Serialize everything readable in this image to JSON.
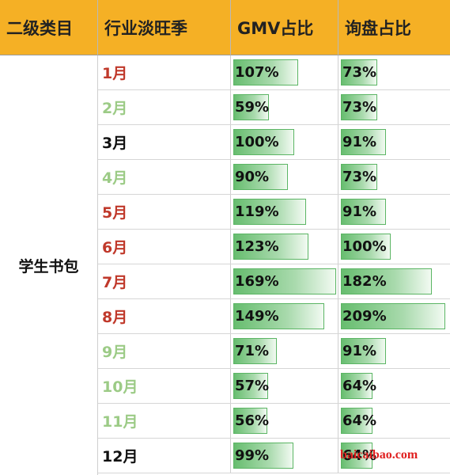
{
  "header": {
    "col1": "二级类目",
    "col2": "行业淡旺季",
    "col3": "GMV占比",
    "col4": "询盘占比"
  },
  "category": "学生书包",
  "colors": {
    "header_bg": "#f5b025",
    "peak": "#c0392b",
    "off": "#9ccb86",
    "neutral": "#111111",
    "bar": "#67bd6f"
  },
  "rows": [
    {
      "month": "1月",
      "season": "peak",
      "gmv": "107%",
      "gmv_pct": 107,
      "inq": "73%",
      "inq_pct": 73
    },
    {
      "month": "2月",
      "season": "off",
      "gmv": "59%",
      "gmv_pct": 59,
      "inq": "73%",
      "inq_pct": 73
    },
    {
      "month": "3月",
      "season": "neutral",
      "gmv": "100%",
      "gmv_pct": 100,
      "inq": "91%",
      "inq_pct": 91
    },
    {
      "month": "4月",
      "season": "off",
      "gmv": "90%",
      "gmv_pct": 90,
      "inq": "73%",
      "inq_pct": 73
    },
    {
      "month": "5月",
      "season": "peak",
      "gmv": "119%",
      "gmv_pct": 119,
      "inq": "91%",
      "inq_pct": 91
    },
    {
      "month": "6月",
      "season": "peak",
      "gmv": "123%",
      "gmv_pct": 123,
      "inq": "100%",
      "inq_pct": 100
    },
    {
      "month": "7月",
      "season": "peak",
      "gmv": "169%",
      "gmv_pct": 169,
      "inq": "182%",
      "inq_pct": 182
    },
    {
      "month": "8月",
      "season": "peak",
      "gmv": "149%",
      "gmv_pct": 149,
      "inq": "209%",
      "inq_pct": 209
    },
    {
      "month": "9月",
      "season": "off",
      "gmv": "71%",
      "gmv_pct": 71,
      "inq": "91%",
      "inq_pct": 91
    },
    {
      "month": "10月",
      "season": "off",
      "gmv": "57%",
      "gmv_pct": 57,
      "inq": "64%",
      "inq_pct": 64
    },
    {
      "month": "11月",
      "season": "off",
      "gmv": "56%",
      "gmv_pct": 56,
      "inq": "64%",
      "inq_pct": 64
    },
    {
      "month": "12月",
      "season": "neutral",
      "gmv": "99%",
      "gmv_pct": 99,
      "inq": "64%",
      "inq_pct": 64
    }
  ],
  "watermark": "baicaibao.com"
}
